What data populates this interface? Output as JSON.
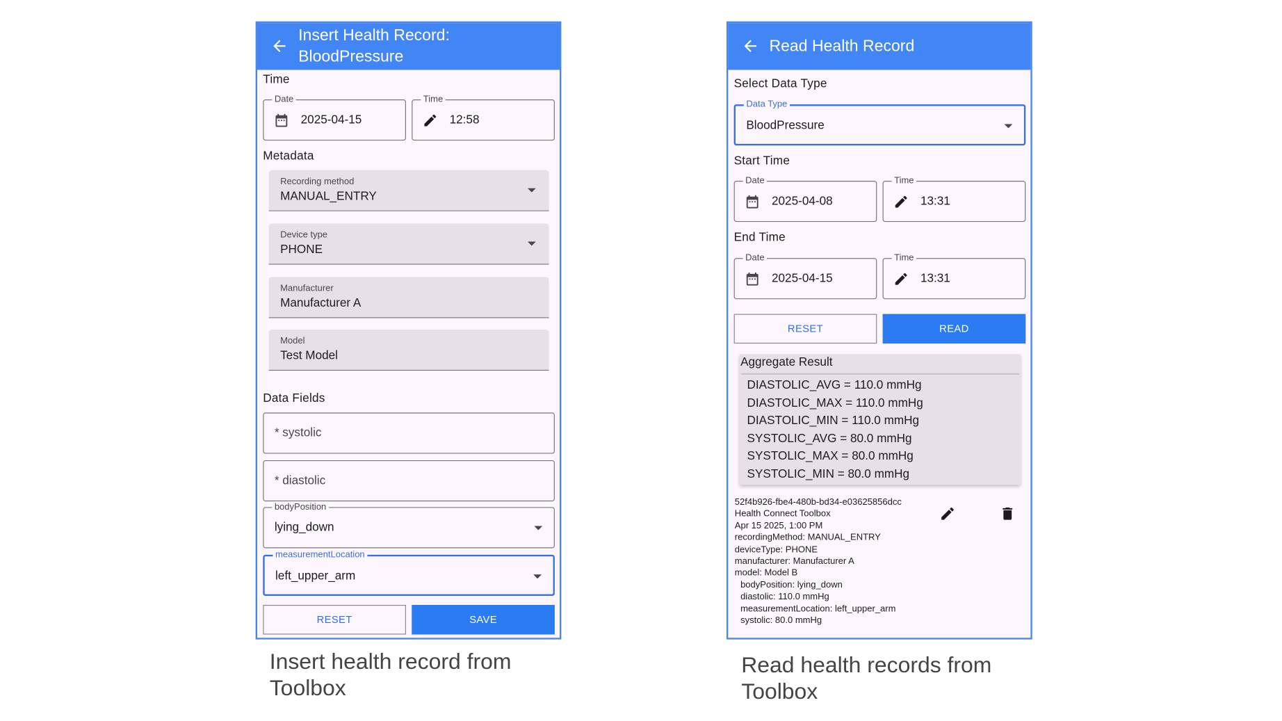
{
  "insert": {
    "title_line1": "Insert Health Record:",
    "title_line2": "BloodPressure",
    "time_section": "Time",
    "date": {
      "label": "Date",
      "value": "2025-04-15"
    },
    "time": {
      "label": "Time",
      "value": "12:58"
    },
    "metadata_section": "Metadata",
    "recording_method": {
      "label": "Recording method",
      "value": "MANUAL_ENTRY"
    },
    "device_type": {
      "label": "Device type",
      "value": "PHONE"
    },
    "manufacturer": {
      "label": "Manufacturer",
      "value": "Manufacturer A"
    },
    "model": {
      "label": "Model",
      "value": "Test Model"
    },
    "data_fields_section": "Data Fields",
    "systolic_placeholder": "* systolic",
    "diastolic_placeholder": "* diastolic",
    "body_position": {
      "label": "bodyPosition",
      "value": "lying_down"
    },
    "measurement_location": {
      "label": "measurementLocation",
      "value": "left_upper_arm"
    },
    "reset_label": "RESET",
    "save_label": "SAVE",
    "caption": "Insert health record from Toolbox"
  },
  "read": {
    "title": "Read Health Record",
    "select_section": "Select Data Type",
    "data_type": {
      "label": "Data Type",
      "value": "BloodPressure"
    },
    "start_section": "Start Time",
    "start_date": {
      "label": "Date",
      "value": "2025-04-08"
    },
    "start_time": {
      "label": "Time",
      "value": "13:31"
    },
    "end_section": "End Time",
    "end_date": {
      "label": "Date",
      "value": "2025-04-15"
    },
    "end_time": {
      "label": "Time",
      "value": "13:31"
    },
    "reset_label": "RESET",
    "read_label": "READ",
    "aggregate": {
      "title": "Aggregate Result",
      "lines": [
        "DIASTOLIC_AVG = 110.0 mmHg",
        "DIASTOLIC_MAX = 110.0 mmHg",
        "DIASTOLIC_MIN = 110.0 mmHg",
        "SYSTOLIC_AVG = 80.0 mmHg",
        "SYSTOLIC_MAX = 80.0 mmHg",
        "SYSTOLIC_MIN = 80.0 mmHg"
      ]
    },
    "record": {
      "lines": [
        "52f4b926-fbe4-480b-bd34-e03625856dcc",
        "Health Connect Toolbox",
        "Apr 15 2025, 1:00 PM",
        "recordingMethod: MANUAL_ENTRY",
        "deviceType: PHONE",
        "manufacturer: Manufacturer A",
        "model: Model B"
      ],
      "fields": [
        "bodyPosition: lying_down",
        "diastolic: 110.0 mmHg",
        "measurementLocation: left_upper_arm",
        "systolic: 80.0 mmHg"
      ]
    },
    "caption": "Read health records from Toolbox"
  },
  "colors": {
    "header": "#4285f4",
    "primary_button": "#2b7cf2",
    "background": "#fdf7fd"
  }
}
